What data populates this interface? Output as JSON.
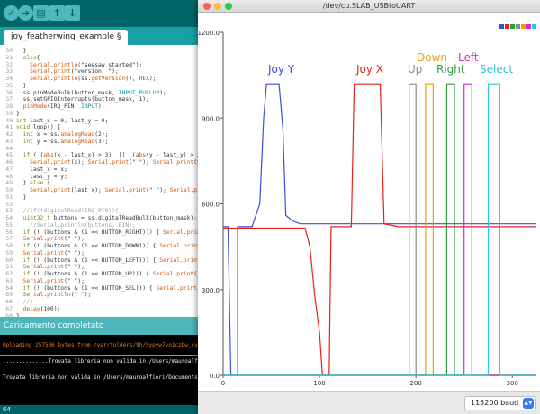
{
  "ide": {
    "tab_label": "joy_featherwing_example §",
    "code_lines": [
      {
        "n": "30",
        "t": "  }"
      },
      {
        "n": "31",
        "t": "  else{"
      },
      {
        "n": "32",
        "t": "    Serial.println(\"seesaw started\");"
      },
      {
        "n": "33",
        "t": "    Serial.print(\"version: \");"
      },
      {
        "n": "34",
        "t": "    Serial.println(ss.getVersion(), HEX);"
      },
      {
        "n": "35",
        "t": "  }"
      },
      {
        "n": "36",
        "t": "  ss.pinModeBulk(button_mask, INPUT_PULLUP);"
      },
      {
        "n": "37",
        "t": "  ss.setGPIOInterrupts(button_mask, 1);"
      },
      {
        "n": "38",
        "t": "  pinMode(IRQ_PIN, INPUT);"
      },
      {
        "n": "39",
        "t": "}"
      },
      {
        "n": "40",
        "t": "int last_x = 0, last_y = 0;"
      },
      {
        "n": "41",
        "t": "void loop() {"
      },
      {
        "n": "42",
        "t": "  int x = ss.analogRead(2);"
      },
      {
        "n": "43",
        "t": "  int y = ss.analogRead(3);"
      },
      {
        "n": "44",
        "t": ""
      },
      {
        "n": "45",
        "t": "  if ( (abs(x - last_x) > 3)  ||  (abs(y - last_y) > 3)) {"
      },
      {
        "n": "46",
        "t": "    Serial.print(x); Serial.print(\" \"); Serial.print(y); Serial.print"
      },
      {
        "n": "47",
        "t": "    last_x = x;"
      },
      {
        "n": "48",
        "t": "    last_y = y;"
      },
      {
        "n": "49",
        "t": "  } else {"
      },
      {
        "n": "50",
        "t": "    Serial.print(last_x); Serial.print(\" \"); Serial.print(last"
      },
      {
        "n": "51",
        "t": "  }"
      },
      {
        "n": "52",
        "t": ""
      },
      {
        "n": "53",
        "t": "  //if(!digitalRead(IRQ_PIN)){"
      },
      {
        "n": "54",
        "t": "  uint32_t buttons = ss.digitalReadBulk(button_mask);"
      },
      {
        "n": "55",
        "t": "    //Serial.println(buttons, BIN);"
      },
      {
        "n": "56",
        "t": "  if (! (buttons & (1 << BUTTON_RIGHT))) { Serial.print(\"1023\");"
      },
      {
        "n": "57",
        "t": "  Serial.print(\" \");"
      },
      {
        "n": "58",
        "t": "  if (! (buttons & (1 << BUTTON_DOWN))) { Serial.print(\"1023\");"
      },
      {
        "n": "59",
        "t": "  Serial.print(\" \");"
      },
      {
        "n": "60",
        "t": "  if (! (buttons & (1 << BUTTON_LEFT))) { Serial.print(\"1023\");"
      },
      {
        "n": "61",
        "t": "  Serial.print(\" \");"
      },
      {
        "n": "62",
        "t": "  if (! (buttons & (1 << BUTTON_UP))) { Serial.print(\"1023\");"
      },
      {
        "n": "63",
        "t": "  Serial.print(\" \");"
      },
      {
        "n": "64",
        "t": "  if (! (buttons & (1 << BUTTON_SEL))) { Serial.print(\"1023\");"
      },
      {
        "n": "65",
        "t": "  Serial.println(\" \");"
      },
      {
        "n": "66",
        "t": "  //}"
      },
      {
        "n": "67",
        "t": "  delay(100);"
      },
      {
        "n": "68",
        "t": "}"
      }
    ],
    "status_text": "Caricamento completato",
    "console_lines": [
      "Uploading 257536 bytes from /var/folders/9h/5ypyw7vn1czbw_sy65yg9h4",
      "",
      "..............Trovata libreria non valida in /Users/mauroalfieri/Docu",
      "",
      "Trovata libreria non valida in /Users/mauroalfieri/Documents/Ardui"
    ],
    "footer_line": "64"
  },
  "plotter": {
    "window_title": "/dev/cu.SLAB_USBtoUART",
    "baud_value": "115200 baud",
    "legend_colors": [
      "#3a4fd6",
      "#e3231b",
      "#2c9e3c",
      "#8a8a8a",
      "#f0a000",
      "#d22fd2",
      "#25c8e0"
    ],
    "labels": [
      {
        "text": "Joy Y",
        "color": "#3a4fd6"
      },
      {
        "text": "Joy X",
        "color": "#e3231b"
      },
      {
        "text": "Up",
        "color": "#8a8a8a"
      },
      {
        "text": "Down",
        "color": "#f0a000"
      },
      {
        "text": "Right",
        "color": "#2c9e3c"
      },
      {
        "text": "Left",
        "color": "#d22fd2"
      },
      {
        "text": "Select",
        "color": "#25c8e0"
      }
    ]
  },
  "chart_data": {
    "type": "line",
    "ylim": [
      0,
      1200
    ],
    "xlim": [
      0,
      325
    ],
    "y_ticks": [
      "0.0",
      "300.0",
      "600.0",
      "900.0",
      "1200.0"
    ],
    "x_ticks": [
      "0",
      "100",
      "200",
      "300"
    ],
    "grid": false,
    "series": [
      {
        "name": "Joy Y",
        "color": "#3a4fd6",
        "points": [
          [
            0,
            520
          ],
          [
            5,
            520
          ],
          [
            8,
            0
          ],
          [
            10,
            0
          ],
          [
            15,
            0
          ],
          [
            15,
            520
          ],
          [
            30,
            520
          ],
          [
            38,
            600
          ],
          [
            42,
            900
          ],
          [
            45,
            1020
          ],
          [
            58,
            1020
          ],
          [
            62,
            860
          ],
          [
            65,
            560
          ],
          [
            72,
            540
          ],
          [
            80,
            530
          ],
          [
            325,
            530
          ]
        ]
      },
      {
        "name": "Joy X",
        "color": "#e3231b",
        "points": [
          [
            0,
            515
          ],
          [
            85,
            515
          ],
          [
            90,
            450
          ],
          [
            95,
            280
          ],
          [
            100,
            150
          ],
          [
            103,
            0
          ],
          [
            110,
            0
          ],
          [
            112,
            520
          ],
          [
            133,
            520
          ],
          [
            136,
            1020
          ],
          [
            163,
            1020
          ],
          [
            167,
            530
          ],
          [
            182,
            520
          ],
          [
            325,
            520
          ]
        ]
      },
      {
        "name": "Up",
        "color": "#8a8a8a",
        "points": [
          [
            0,
            0
          ],
          [
            193,
            0
          ],
          [
            193,
            1020
          ],
          [
            200,
            1020
          ],
          [
            200,
            0
          ],
          [
            325,
            0
          ]
        ]
      },
      {
        "name": "Down",
        "color": "#f0a000",
        "points": [
          [
            0,
            0
          ],
          [
            210,
            0
          ],
          [
            210,
            1020
          ],
          [
            218,
            1020
          ],
          [
            218,
            0
          ],
          [
            325,
            0
          ]
        ]
      },
      {
        "name": "Right",
        "color": "#2c9e3c",
        "points": [
          [
            0,
            0
          ],
          [
            232,
            0
          ],
          [
            232,
            1020
          ],
          [
            240,
            1020
          ],
          [
            240,
            0
          ],
          [
            325,
            0
          ]
        ]
      },
      {
        "name": "Left",
        "color": "#d22fd2",
        "points": [
          [
            0,
            0
          ],
          [
            250,
            0
          ],
          [
            250,
            1020
          ],
          [
            258,
            1020
          ],
          [
            258,
            0
          ],
          [
            325,
            0
          ]
        ]
      },
      {
        "name": "Select",
        "color": "#25c8e0",
        "points": [
          [
            0,
            0
          ],
          [
            275,
            0
          ],
          [
            275,
            1020
          ],
          [
            287,
            1020
          ],
          [
            287,
            0
          ],
          [
            325,
            0
          ]
        ]
      }
    ]
  }
}
